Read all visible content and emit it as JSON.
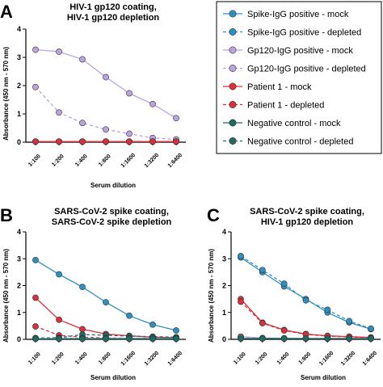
{
  "panels": {
    "a": {
      "letter": "A"
    },
    "b": {
      "letter": "B"
    },
    "c": {
      "letter": "C"
    }
  },
  "chart_data": [
    {
      "type": "line",
      "panel": "A",
      "title": [
        "HIV-1 gp120 coating,",
        "HIV-1 gp120 depletion"
      ],
      "xlabel": "Serum dilution",
      "ylabel": "Absorbance (450 nm - 570 nm)",
      "categories": [
        "1:100",
        "1:200",
        "1:400",
        "1:800",
        "1:1600",
        "1:3200",
        "1:6400"
      ],
      "ylim": [
        0,
        4
      ],
      "yticks": [
        0,
        1,
        2,
        3,
        4
      ],
      "series": [
        {
          "name": "Gp120-IgG positive - mock",
          "values": [
            3.27,
            3.2,
            2.93,
            2.3,
            1.73,
            1.35,
            0.85
          ]
        },
        {
          "name": "Gp120-IgG positive - depleted",
          "values": [
            1.95,
            1.05,
            0.68,
            0.45,
            0.3,
            0.15,
            0.1
          ]
        },
        {
          "name": "Spike-IgG positive - mock",
          "values": [
            0.02,
            0.02,
            0.02,
            0.02,
            0.02,
            0.02,
            0.02
          ]
        },
        {
          "name": "Spike-IgG positive - depleted",
          "values": [
            0.02,
            0.02,
            0.02,
            0.02,
            0.02,
            0.02,
            0.02
          ]
        },
        {
          "name": "Negative control - mock",
          "values": [
            0.02,
            0.02,
            0.02,
            0.02,
            0.02,
            0.02,
            0.02
          ]
        },
        {
          "name": "Negative control - depleted",
          "values": [
            0.02,
            0.02,
            0.02,
            0.02,
            0.02,
            0.02,
            0.02
          ]
        },
        {
          "name": "Patient 1 - mock",
          "values": [
            0.02,
            0.02,
            0.02,
            0.02,
            0.02,
            0.02,
            0.02
          ]
        },
        {
          "name": "Patient 1 - depleted",
          "values": [
            0.02,
            0.02,
            0.02,
            0.02,
            0.02,
            0.02,
            0.02
          ]
        }
      ]
    },
    {
      "type": "line",
      "panel": "B",
      "title": [
        "SARS-CoV-2 spike coating,",
        "SARS-CoV-2 spike depletion"
      ],
      "xlabel": "Serum dilution",
      "ylabel": "Absorbance (450 nm - 570 nm)",
      "categories": [
        "1:100",
        "1:200",
        "1:400",
        "1:800",
        "1:1600",
        "1:3200",
        "1:6400"
      ],
      "ylim": [
        0,
        4
      ],
      "yticks": [
        0,
        1,
        2,
        3,
        4
      ],
      "series": [
        {
          "name": "Spike-IgG positive - mock",
          "values": [
            2.95,
            2.42,
            1.95,
            1.38,
            0.88,
            0.55,
            0.33
          ]
        },
        {
          "name": "Patient 1 - mock",
          "values": [
            1.55,
            0.73,
            0.38,
            0.2,
            0.13,
            0.08,
            0.06
          ]
        },
        {
          "name": "Patient 1 - depleted",
          "values": [
            0.48,
            0.15,
            0.08,
            0.05,
            0.04,
            0.03,
            0.03
          ]
        },
        {
          "name": "Negative control - depleted",
          "values": [
            0.05,
            0.06,
            0.18,
            0.15,
            0.12,
            0.1,
            0.08
          ]
        },
        {
          "name": "Spike-IgG positive - depleted",
          "values": [
            0.04,
            0.04,
            0.04,
            0.04,
            0.04,
            0.04,
            0.04
          ]
        },
        {
          "name": "Gp120-IgG positive - mock",
          "values": [
            0.03,
            0.03,
            0.03,
            0.03,
            0.03,
            0.03,
            0.03
          ]
        },
        {
          "name": "Gp120-IgG positive - depleted",
          "values": [
            0.03,
            0.03,
            0.03,
            0.03,
            0.03,
            0.03,
            0.03
          ]
        },
        {
          "name": "Negative control - mock",
          "values": [
            0.02,
            0.02,
            0.02,
            0.02,
            0.02,
            0.02,
            0.02
          ]
        }
      ]
    },
    {
      "type": "line",
      "panel": "C",
      "title": [
        "SARS-CoV-2 spike coating,",
        "HIV-1 gp120 depletion"
      ],
      "xlabel": "Serum dilution",
      "ylabel": "Absorbance (450 nm - 570 nm)",
      "categories": [
        "1:100",
        "1:200",
        "1:400",
        "1:800",
        "1:1600",
        "1:3200",
        "1:6400"
      ],
      "ylim": [
        0,
        4
      ],
      "yticks": [
        0,
        1,
        2,
        3,
        4
      ],
      "series": [
        {
          "name": "Spike-IgG positive - mock",
          "values": [
            3.05,
            2.5,
            1.97,
            1.5,
            1.0,
            0.63,
            0.38
          ]
        },
        {
          "name": "Spike-IgG positive - depleted",
          "values": [
            3.1,
            2.58,
            2.07,
            1.45,
            1.1,
            0.68,
            0.4
          ]
        },
        {
          "name": "Patient 1 - mock",
          "values": [
            1.5,
            0.62,
            0.35,
            0.2,
            0.13,
            0.1,
            0.07
          ]
        },
        {
          "name": "Patient 1 - depleted",
          "values": [
            1.4,
            0.6,
            0.33,
            0.18,
            0.12,
            0.09,
            0.06
          ]
        },
        {
          "name": "Gp120-IgG positive - mock",
          "values": [
            0.1,
            0.05,
            0.04,
            0.03,
            0.03,
            0.03,
            0.03
          ]
        },
        {
          "name": "Gp120-IgG positive - depleted",
          "values": [
            0.07,
            0.04,
            0.03,
            0.03,
            0.03,
            0.03,
            0.03
          ]
        },
        {
          "name": "Negative control - mock",
          "values": [
            0.03,
            0.03,
            0.03,
            0.03,
            0.03,
            0.03,
            0.03
          ]
        },
        {
          "name": "Negative control - depleted",
          "values": [
            0.03,
            0.03,
            0.03,
            0.03,
            0.03,
            0.03,
            0.03
          ]
        }
      ]
    }
  ],
  "legend": {
    "items": [
      {
        "label": "Spike-IgG positive - mock",
        "color": "#2e8fc2",
        "dashed": false
      },
      {
        "label": "Spike-IgG positive - depleted",
        "color": "#2e8fc2",
        "dashed": true
      },
      {
        "label": "Gp120-IgG positive - mock",
        "color": "#b9a4e0",
        "dashed": false
      },
      {
        "label": "Gp120-IgG positive - depleted",
        "color": "#b9a4e0",
        "dashed": true
      },
      {
        "label": "Patient 1 - mock",
        "color": "#d9303c",
        "dashed": false
      },
      {
        "label": "Patient 1 - depleted",
        "color": "#d9303c",
        "dashed": true
      },
      {
        "label": "Negative control - mock",
        "color": "#1f6a63",
        "dashed": false
      },
      {
        "label": "Negative control - depleted",
        "color": "#1f6a63",
        "dashed": true
      }
    ]
  }
}
